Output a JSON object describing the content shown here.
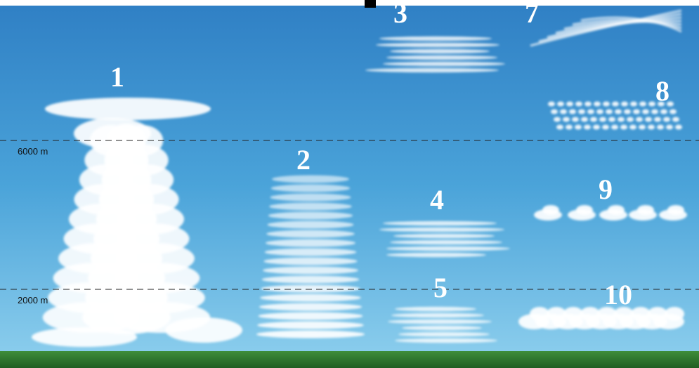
{
  "altitude_lines": [
    {
      "label": "6000 m"
    },
    {
      "label": "2000 m"
    }
  ],
  "clouds": [
    {
      "label": "1"
    },
    {
      "label": "2"
    },
    {
      "label": "3"
    },
    {
      "label": "4"
    },
    {
      "label": "5"
    },
    {
      "label": "7"
    },
    {
      "label": "8"
    },
    {
      "label": "9"
    },
    {
      "label": "10"
    }
  ]
}
